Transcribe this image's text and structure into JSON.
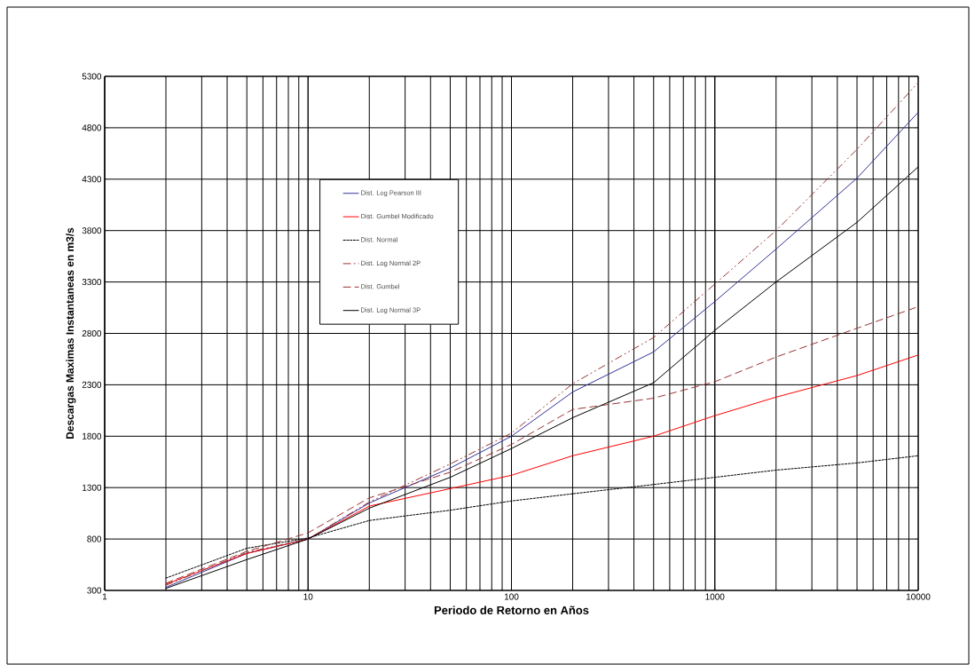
{
  "chart_data": {
    "type": "line",
    "xlabel": "Periodo de Retorno en Años",
    "ylabel": "Descargas Maximas Instantaneas en m3/s",
    "x": [
      2,
      5,
      10,
      20,
      50,
      100,
      200,
      500,
      1000,
      2000,
      5000,
      10000
    ],
    "series": [
      {
        "name": "Dist. Log Pearson III",
        "color": "#333399",
        "line_style": "solid",
        "values": [
          330,
          660,
          800,
          1150,
          1490,
          1800,
          2230,
          2620,
          3110,
          3620,
          4310,
          4950
        ]
      },
      {
        "name": "Dist. Gumbel Modificado",
        "color": "#ff0000",
        "line_style": "solid",
        "values": [
          360,
          660,
          800,
          1120,
          1290,
          1420,
          1610,
          1800,
          2000,
          2180,
          2390,
          2590
        ]
      },
      {
        "name": "Dist. Normal",
        "color": "#000000",
        "line_style": "dotted",
        "values": [
          420,
          710,
          810,
          980,
          1080,
          1170,
          1240,
          1330,
          1400,
          1470,
          1540,
          1610
        ]
      },
      {
        "name": "Dist. Log Normal 2P",
        "color": "#993333",
        "line_style": "dashdot",
        "values": [
          350,
          670,
          800,
          1160,
          1530,
          1830,
          2310,
          2760,
          3280,
          3800,
          4590,
          5240
        ]
      },
      {
        "name": "Dist. Gumbel",
        "color": "#993333",
        "line_style": "dashed",
        "values": [
          370,
          680,
          860,
          1200,
          1450,
          1720,
          2060,
          2170,
          2330,
          2570,
          2850,
          3060
        ]
      },
      {
        "name": "Dist. Log Normal 3P",
        "color": "#000000",
        "line_style": "solid",
        "values": [
          320,
          600,
          800,
          1100,
          1400,
          1680,
          1980,
          2320,
          2830,
          3300,
          3880,
          4420
        ]
      }
    ],
    "xlim": [
      1,
      10000
    ],
    "xticks": [
      1,
      10,
      100,
      1000,
      10000
    ],
    "ylim": [
      300,
      5300
    ],
    "yticks": [
      300,
      800,
      1300,
      1800,
      2300,
      2800,
      3300,
      3800,
      4300,
      4800,
      5300
    ],
    "log": "x",
    "grid": true,
    "legend": "top left"
  }
}
